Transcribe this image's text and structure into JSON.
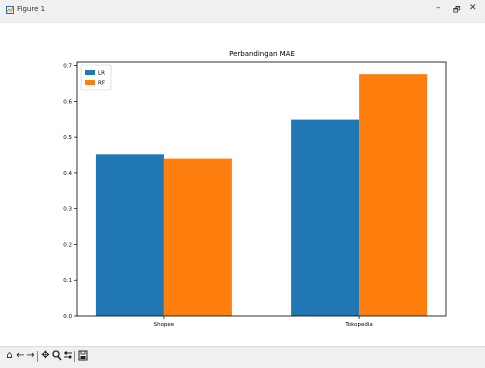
{
  "window": {
    "title": "Figure 1",
    "minimize_glyph": "–",
    "maximize_glyph": "🗗",
    "close_glyph": "✕"
  },
  "toolbar": {
    "tools": [
      "home-icon",
      "back-icon",
      "forward-icon",
      "pan-icon",
      "zoom-icon",
      "configure-subplots-icon",
      "save-icon"
    ]
  },
  "chart_data": {
    "type": "bar",
    "title": "Perbandingan MAE",
    "xlabel": "",
    "ylabel": "",
    "categories": [
      "Shopee",
      "Tokopedia"
    ],
    "series": [
      {
        "name": "LR",
        "values": [
          0.452,
          0.549
        ],
        "color": "#1f77b4"
      },
      {
        "name": "RF",
        "values": [
          0.44,
          0.676
        ],
        "color": "#ff7f0e"
      }
    ],
    "ylim": [
      0.0,
      0.71
    ],
    "yticks": [
      0.0,
      0.1,
      0.2,
      0.3,
      0.4,
      0.5,
      0.6,
      0.7
    ],
    "ytick_labels": [
      "0.0",
      "0.1",
      "0.2",
      "0.3",
      "0.4",
      "0.5",
      "0.6",
      "0.7"
    ],
    "legend_position": "top-left",
    "grid": false
  }
}
